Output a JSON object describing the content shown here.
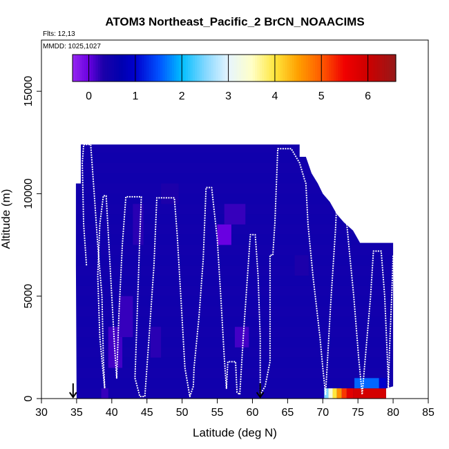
{
  "chart_data": {
    "type": "heatmap",
    "title": "ATOM3 Northeast_Pacific_2 BrCN_NOAACIMS",
    "flights_label": "Flts: 12,13",
    "dates_label": "MMDD: 1025,1027",
    "xlabel": "Latitude (deg N)",
    "ylabel": "Altitude (m)",
    "xlim": [
      30,
      85
    ],
    "ylim": [
      0,
      17500
    ],
    "xticks": [
      30,
      35,
      40,
      45,
      50,
      55,
      60,
      65,
      70,
      75,
      80,
      85
    ],
    "yticks": [
      0,
      5000,
      10000,
      15000
    ],
    "colorbar": {
      "range": [
        -0.35,
        6.6
      ],
      "ticks": [
        0,
        1,
        2,
        3,
        4,
        5,
        6
      ],
      "orientation": "horizontal",
      "position": "top, inside plot"
    },
    "background_value": 0.45,
    "cells": [
      {
        "lat": [
          38.5,
          39.5
        ],
        "alt": [
          0,
          500
        ],
        "value": 0.2
      },
      {
        "lat": [
          39.5,
          41.5
        ],
        "alt": [
          1500,
          3500
        ],
        "value": 0.15
      },
      {
        "lat": [
          41.0,
          43.0
        ],
        "alt": [
          3000,
          5000
        ],
        "value": 0.2
      },
      {
        "lat": [
          43.0,
          44.5
        ],
        "alt": [
          7500,
          9500
        ],
        "value": 0.25
      },
      {
        "lat": [
          45.5,
          47.0
        ],
        "alt": [
          2000,
          3500
        ],
        "value": 0.25
      },
      {
        "lat": [
          55.0,
          57.0
        ],
        "alt": [
          7500,
          8500
        ],
        "value": 0.0
      },
      {
        "lat": [
          56.0,
          59.0
        ],
        "alt": [
          8500,
          9500
        ],
        "value": 0.2
      },
      {
        "lat": [
          57.5,
          59.5
        ],
        "alt": [
          2500,
          3500
        ],
        "value": 0.15
      },
      {
        "lat": [
          47.0,
          49.5
        ],
        "alt": [
          9500,
          10500
        ],
        "value": 0.3
      },
      {
        "lat": [
          66.0,
          68.0
        ],
        "alt": [
          6000,
          7000
        ],
        "value": 0.3
      },
      {
        "lat": [
          70.2,
          70.8
        ],
        "alt": [
          0,
          500
        ],
        "value": 2.5
      },
      {
        "lat": [
          70.8,
          71.4
        ],
        "alt": [
          0,
          500
        ],
        "value": 3.3
      },
      {
        "lat": [
          71.4,
          72.0
        ],
        "alt": [
          0,
          500
        ],
        "value": 4.0
      },
      {
        "lat": [
          72.0,
          72.7
        ],
        "alt": [
          0,
          500
        ],
        "value": 4.6
      },
      {
        "lat": [
          72.7,
          73.4
        ],
        "alt": [
          0,
          500
        ],
        "value": 5.2
      },
      {
        "lat": [
          73.4,
          74.3
        ],
        "alt": [
          0,
          500
        ],
        "value": 5.7
      },
      {
        "lat": [
          74.3,
          79.0
        ],
        "alt": [
          0,
          500
        ],
        "value": 5.9
      },
      {
        "lat": [
          74.5,
          78.0
        ],
        "alt": [
          500,
          1000
        ],
        "value": 1.6
      },
      {
        "lat": [
          78.0,
          79.0
        ],
        "alt": [
          500,
          1000
        ],
        "value": 1.0
      }
    ],
    "flight_track": [
      [
        36.4,
        6500
      ],
      [
        36.0,
        8500
      ],
      [
        35.8,
        11500
      ],
      [
        36.0,
        12400
      ],
      [
        37.0,
        12400
      ],
      [
        37.5,
        10000
      ],
      [
        38.0,
        7500
      ],
      [
        38.6,
        5000
      ],
      [
        38.8,
        2000
      ],
      [
        39.0,
        500
      ],
      [
        38.7,
        1500
      ],
      [
        38.3,
        3000
      ],
      [
        38.0,
        6000
      ],
      [
        38.3,
        8500
      ],
      [
        38.8,
        9900
      ],
      [
        39.2,
        9900
      ],
      [
        39.6,
        7500
      ],
      [
        40.0,
        5000
      ],
      [
        40.4,
        2500
      ],
      [
        40.7,
        1000
      ],
      [
        41.0,
        4000
      ],
      [
        41.5,
        7500
      ],
      [
        42.0,
        9850
      ],
      [
        44.2,
        9850
      ],
      [
        44.0,
        8000
      ],
      [
        43.6,
        4000
      ],
      [
        43.3,
        1000
      ],
      [
        44.0,
        100
      ],
      [
        44.7,
        100
      ],
      [
        45.3,
        3000
      ],
      [
        46.0,
        6500
      ],
      [
        46.4,
        9800
      ],
      [
        48.9,
        9800
      ],
      [
        49.3,
        8000
      ],
      [
        49.9,
        4500
      ],
      [
        50.4,
        1500
      ],
      [
        51.1,
        100
      ],
      [
        51.6,
        600
      ],
      [
        51.7,
        1500
      ],
      [
        52.4,
        4000
      ],
      [
        53.0,
        6800
      ],
      [
        53.4,
        10300
      ],
      [
        54.2,
        10300
      ],
      [
        55.0,
        7800
      ],
      [
        55.5,
        5000
      ],
      [
        56.0,
        2000
      ],
      [
        56.3,
        500
      ],
      [
        56.5,
        1800
      ],
      [
        57.6,
        1800
      ],
      [
        57.8,
        300
      ],
      [
        58.2,
        200
      ],
      [
        58.7,
        3000
      ],
      [
        59.2,
        5500
      ],
      [
        59.7,
        8000
      ],
      [
        60.4,
        8000
      ],
      [
        60.8,
        6000
      ],
      [
        61.1,
        3000
      ],
      [
        61.1,
        200
      ],
      [
        61.8,
        600
      ],
      [
        62.5,
        1800
      ],
      [
        62.5,
        7000
      ],
      [
        62.9,
        7000
      ],
      [
        63.2,
        8600
      ],
      [
        63.6,
        12200
      ],
      [
        65.5,
        12200
      ],
      [
        66.7,
        11500
      ],
      [
        67.4,
        10700
      ],
      [
        67.6,
        10500
      ],
      [
        67.9,
        8500
      ],
      [
        68.6,
        6000
      ],
      [
        69.6,
        3000
      ],
      [
        70.0,
        1500
      ],
      [
        70.4,
        200
      ],
      [
        71.1,
        4500
      ],
      [
        71.8,
        8200
      ],
      [
        72.1,
        10400
      ],
      [
        72.9,
        10400
      ],
      [
        73.7,
        7500
      ],
      [
        74.4,
        5000
      ],
      [
        75.1,
        2000
      ],
      [
        75.6,
        200
      ],
      [
        76.3,
        3000
      ],
      [
        76.8,
        5000
      ],
      [
        77.2,
        7200
      ],
      [
        78.3,
        7200
      ],
      [
        78.8,
        5000
      ],
      [
        79.3,
        1000
      ],
      [
        79.3,
        300
      ],
      [
        79.5,
        2500
      ],
      [
        79.8,
        5000
      ],
      [
        80.0,
        7000
      ]
    ],
    "arrows_lat": [
      34.5,
      61.1
    ]
  }
}
